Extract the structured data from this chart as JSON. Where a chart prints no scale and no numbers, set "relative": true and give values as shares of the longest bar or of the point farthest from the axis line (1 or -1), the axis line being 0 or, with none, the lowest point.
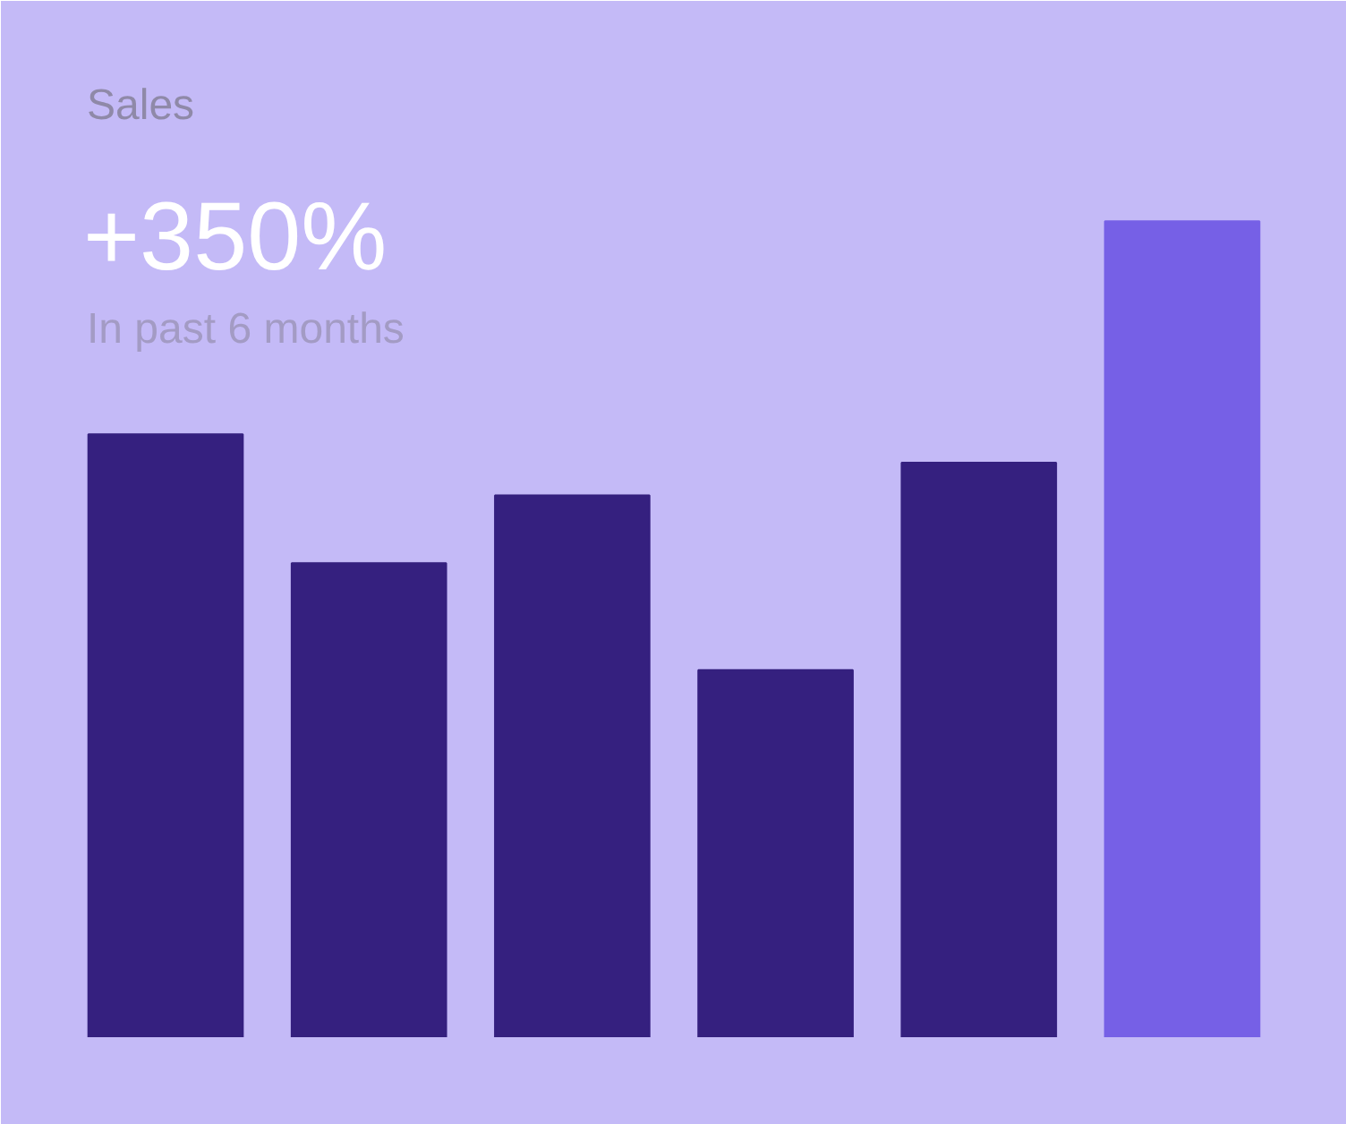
{
  "chart_data": {
    "type": "bar",
    "title": "Sales",
    "subtitle": "In past 6 months",
    "annotations": [
      "+350%"
    ],
    "relative": true,
    "categories": [
      null,
      null,
      null,
      null,
      null,
      null
    ],
    "values": [
      0.739,
      0.581,
      0.664,
      0.45,
      0.704,
      1
    ],
    "colors": [
      "#35207f",
      "#35207f",
      "#35207f",
      "#35207f",
      "#35207f",
      "#7660e6"
    ]
  }
}
